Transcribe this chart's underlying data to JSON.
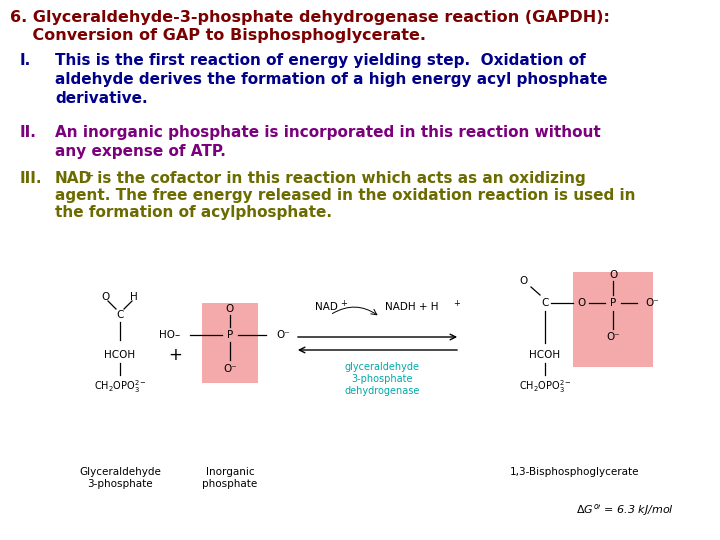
{
  "title_line1": "6. Glyceraldehyde-3-phosphate dehydrogenase reaction (GAPDH):",
  "title_line2": "    Conversion of GAP to Bisphosphoglycerate.",
  "title_color": "#7B0000",
  "title_fontsize": 11.5,
  "point_I_label": "I.",
  "point_I_text": "This is the first reaction of energy yielding step.  Oxidation of\naldehyde derives the formation of a high energy acyl phosphate\nderivative.",
  "point_I_color": "#00008B",
  "point_II_label": "II.",
  "point_II_text": "An inorganic phosphate is incorporated in this reaction without\nany expense of ATP.",
  "point_II_color": "#7B007B",
  "point_III_label": "III.",
  "point_III_text_1": "NAD",
  "point_III_text_2": " is the cofactor in this reaction which acts as an oxidizing",
  "point_III_line2": "agent. The free energy released in the oxidation reaction is used in",
  "point_III_line3": "the formation of acylphosphate.",
  "point_III_color": "#6B6B00",
  "point_fontsize": 11,
  "background_color": "#FFFFFF",
  "pink_bg": "#F4AAAA",
  "delta_g": "ΔG°’ = 6.3 kJ/mol"
}
